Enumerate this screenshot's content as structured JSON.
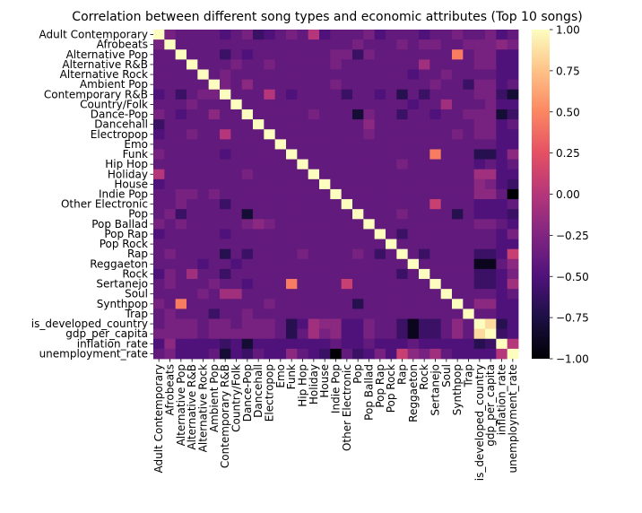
{
  "chart_data": {
    "type": "heatmap",
    "title": "Correlation between different song types and economic attributes (Top 10 songs)",
    "labels": [
      "Adult Contemporary",
      "Afrobeats",
      "Alternative Pop",
      "Alternative R&B",
      "Alternative Rock",
      "Ambient Pop",
      "Contemporary R&B",
      "Country/Folk",
      "Dance-Pop",
      "Dancehall",
      "Electropop",
      "Emo",
      "Funk",
      "Hip Hop",
      "Holiday",
      "House",
      "Indie Pop",
      "Other Electronic",
      "Pop",
      "Pop Ballad",
      "Pop Rap",
      "Pop Rock",
      "Rap",
      "Reggaeton",
      "Rock",
      "Sertanejo",
      "Soul",
      "Synthpop",
      "Trap",
      "is_developed_country",
      "gdp_per_capita",
      "inflation_rate",
      "unemployment_rate"
    ],
    "colorbar": {
      "min": -1.0,
      "max": 1.0,
      "ticks": [
        "1.00",
        "0.75",
        "0.50",
        "0.25",
        "0.00",
        "−0.25",
        "−0.50",
        "−0.75",
        "−1.00"
      ],
      "tick_values": [
        1,
        0.75,
        0.5,
        0.25,
        0,
        -0.25,
        -0.5,
        -0.75,
        -1
      ]
    },
    "colormap": "magma",
    "values": [
      [
        1.0,
        -0.3,
        -0.4,
        -0.4,
        -0.4,
        -0.4,
        -0.5,
        -0.4,
        -0.3,
        -0.6,
        -0.5,
        -0.4,
        -0.3,
        -0.4,
        0.0,
        -0.5,
        -0.4,
        -0.4,
        -0.4,
        -0.3,
        -0.5,
        -0.4,
        -0.4,
        -0.4,
        -0.5,
        -0.4,
        -0.4,
        -0.3,
        -0.4,
        -0.4,
        -0.3,
        -0.5,
        -0.4
      ],
      [
        -0.3,
        1.0,
        -0.4,
        -0.4,
        -0.4,
        -0.4,
        -0.4,
        -0.4,
        -0.4,
        -0.4,
        -0.4,
        -0.4,
        -0.4,
        -0.4,
        -0.4,
        -0.4,
        -0.4,
        -0.4,
        -0.3,
        -0.4,
        -0.4,
        -0.4,
        -0.3,
        -0.4,
        -0.3,
        -0.3,
        -0.4,
        -0.4,
        -0.3,
        -0.3,
        -0.3,
        -0.2,
        -0.3
      ],
      [
        -0.4,
        -0.4,
        1.0,
        -0.4,
        -0.4,
        -0.4,
        -0.6,
        -0.4,
        -0.5,
        -0.4,
        -0.4,
        -0.4,
        -0.4,
        -0.4,
        -0.4,
        -0.4,
        -0.3,
        -0.3,
        -0.6,
        -0.3,
        -0.4,
        -0.4,
        -0.4,
        -0.4,
        -0.4,
        -0.4,
        -0.4,
        0.45,
        -0.4,
        -0.3,
        -0.3,
        -0.5,
        -0.5
      ],
      [
        -0.4,
        -0.4,
        -0.4,
        1.0,
        -0.4,
        -0.4,
        -0.4,
        -0.3,
        -0.4,
        -0.4,
        -0.3,
        -0.4,
        -0.4,
        -0.4,
        -0.4,
        -0.4,
        -0.3,
        -0.4,
        -0.4,
        -0.4,
        -0.4,
        -0.4,
        -0.4,
        -0.4,
        -0.1,
        -0.4,
        -0.4,
        -0.4,
        -0.4,
        -0.3,
        -0.3,
        -0.5,
        -0.5
      ],
      [
        -0.4,
        -0.4,
        -0.4,
        -0.4,
        1.0,
        -0.4,
        -0.3,
        -0.4,
        -0.4,
        -0.4,
        -0.4,
        -0.4,
        -0.4,
        -0.4,
        -0.4,
        -0.4,
        -0.4,
        -0.4,
        -0.4,
        -0.4,
        -0.4,
        -0.4,
        -0.4,
        -0.5,
        -0.4,
        -0.4,
        -0.3,
        -0.4,
        -0.4,
        -0.4,
        -0.4,
        -0.5,
        -0.5
      ],
      [
        -0.4,
        -0.4,
        -0.4,
        -0.4,
        -0.4,
        1.0,
        -0.3,
        -0.4,
        -0.2,
        -0.4,
        -0.4,
        -0.4,
        -0.4,
        -0.4,
        -0.4,
        -0.4,
        -0.3,
        -0.4,
        -0.4,
        -0.4,
        -0.4,
        -0.4,
        -0.4,
        -0.4,
        -0.4,
        -0.3,
        -0.4,
        -0.4,
        -0.6,
        -0.3,
        -0.3,
        -0.5,
        -0.4
      ],
      [
        -0.5,
        -0.4,
        -0.6,
        -0.4,
        -0.3,
        -0.3,
        1.0,
        -0.4,
        -0.4,
        -0.4,
        -0.0,
        -0.4,
        -0.5,
        -0.4,
        -0.4,
        -0.4,
        -0.4,
        -0.6,
        -0.4,
        -0.4,
        -0.5,
        -0.4,
        -0.7,
        -0.4,
        -0.6,
        -0.4,
        -0.4,
        -0.4,
        -0.4,
        -0.3,
        -0.3,
        -0.6,
        -0.8
      ],
      [
        -0.4,
        -0.4,
        -0.4,
        -0.3,
        -0.4,
        -0.4,
        -0.4,
        1.0,
        -0.4,
        -0.4,
        -0.4,
        -0.4,
        -0.4,
        -0.4,
        -0.4,
        -0.4,
        -0.4,
        -0.4,
        -0.4,
        -0.4,
        -0.4,
        -0.4,
        -0.4,
        -0.5,
        -0.4,
        -0.4,
        -0.1,
        -0.4,
        -0.4,
        -0.4,
        -0.3,
        -0.5,
        -0.5
      ],
      [
        -0.3,
        -0.4,
        -0.5,
        -0.4,
        -0.4,
        -0.2,
        -0.4,
        -0.4,
        1.0,
        -0.4,
        -0.4,
        -0.4,
        -0.4,
        -0.4,
        -0.3,
        -0.4,
        -0.4,
        -0.4,
        -0.8,
        -0.3,
        -0.4,
        -0.4,
        -0.6,
        -0.4,
        -0.4,
        -0.5,
        -0.4,
        -0.4,
        -0.3,
        -0.3,
        -0.3,
        -0.8,
        -0.6
      ],
      [
        -0.6,
        -0.4,
        -0.4,
        -0.4,
        -0.4,
        -0.4,
        -0.4,
        -0.4,
        -0.4,
        1.0,
        -0.4,
        -0.4,
        -0.4,
        -0.4,
        -0.4,
        -0.4,
        -0.4,
        -0.4,
        -0.4,
        -0.2,
        -0.4,
        -0.4,
        -0.4,
        -0.4,
        -0.4,
        -0.4,
        -0.4,
        -0.4,
        -0.4,
        -0.3,
        -0.3,
        -0.5,
        -0.4
      ],
      [
        -0.5,
        -0.4,
        -0.4,
        -0.3,
        -0.4,
        -0.4,
        -0.0,
        -0.4,
        -0.4,
        -0.4,
        1.0,
        -0.4,
        -0.4,
        -0.4,
        -0.4,
        -0.4,
        -0.4,
        -0.4,
        -0.4,
        -0.3,
        -0.4,
        -0.4,
        -0.4,
        -0.4,
        -0.4,
        -0.4,
        -0.4,
        -0.3,
        -0.4,
        -0.3,
        -0.3,
        -0.5,
        -0.5
      ],
      [
        -0.4,
        -0.4,
        -0.4,
        -0.4,
        -0.4,
        -0.4,
        -0.4,
        -0.4,
        -0.4,
        -0.4,
        -0.4,
        1.0,
        -0.4,
        -0.4,
        -0.4,
        -0.4,
        -0.4,
        -0.4,
        -0.4,
        -0.4,
        -0.4,
        -0.4,
        -0.4,
        -0.4,
        -0.4,
        -0.4,
        -0.4,
        -0.4,
        -0.4,
        -0.4,
        -0.4,
        -0.5,
        -0.5
      ],
      [
        -0.3,
        -0.4,
        -0.4,
        -0.4,
        -0.4,
        -0.4,
        -0.5,
        -0.4,
        -0.4,
        -0.4,
        -0.4,
        -0.4,
        1.0,
        -0.4,
        -0.4,
        -0.4,
        -0.4,
        -0.4,
        -0.4,
        -0.4,
        -0.4,
        -0.4,
        -0.4,
        -0.4,
        -0.4,
        0.45,
        -0.4,
        -0.4,
        -0.4,
        -0.7,
        -0.7,
        -0.5,
        -0.2
      ],
      [
        -0.4,
        -0.4,
        -0.4,
        -0.4,
        -0.4,
        -0.4,
        -0.4,
        -0.4,
        -0.4,
        -0.4,
        -0.4,
        -0.4,
        -0.4,
        1.0,
        -0.4,
        -0.4,
        -0.4,
        -0.4,
        -0.4,
        -0.4,
        -0.4,
        -0.4,
        -0.3,
        -0.4,
        -0.4,
        -0.4,
        -0.4,
        -0.4,
        -0.4,
        -0.5,
        -0.4,
        -0.5,
        -0.4
      ],
      [
        0.0,
        -0.4,
        -0.4,
        -0.4,
        -0.4,
        -0.4,
        -0.4,
        -0.4,
        -0.3,
        -0.4,
        -0.4,
        -0.4,
        -0.4,
        -0.4,
        1.0,
        -0.4,
        -0.4,
        -0.4,
        -0.4,
        -0.4,
        -0.4,
        -0.4,
        -0.4,
        -0.4,
        -0.4,
        -0.4,
        -0.4,
        -0.4,
        -0.4,
        -0.1,
        -0.1,
        -0.5,
        -0.5
      ],
      [
        -0.5,
        -0.4,
        -0.4,
        -0.4,
        -0.4,
        -0.4,
        -0.4,
        -0.4,
        -0.4,
        -0.4,
        -0.4,
        -0.4,
        -0.4,
        -0.4,
        -0.4,
        1.0,
        -0.4,
        -0.4,
        -0.4,
        -0.4,
        -0.4,
        -0.4,
        -0.4,
        -0.4,
        -0.4,
        -0.4,
        -0.4,
        -0.4,
        -0.4,
        -0.2,
        -0.3,
        -0.5,
        -0.6
      ],
      [
        -0.4,
        -0.4,
        -0.3,
        -0.3,
        -0.4,
        -0.3,
        -0.4,
        -0.4,
        -0.4,
        -0.4,
        -0.4,
        -0.4,
        -0.4,
        -0.4,
        -0.4,
        -0.4,
        1.0,
        -0.4,
        -0.4,
        -0.4,
        -0.4,
        -0.4,
        -0.4,
        -0.4,
        -0.4,
        -0.4,
        -0.4,
        -0.4,
        -0.4,
        -0.2,
        -0.2,
        -0.4,
        -1.0
      ],
      [
        -0.4,
        -0.4,
        -0.3,
        -0.4,
        -0.4,
        -0.4,
        -0.6,
        -0.4,
        -0.4,
        -0.4,
        -0.4,
        -0.4,
        -0.4,
        -0.4,
        -0.4,
        -0.4,
        -0.4,
        1.0,
        -0.4,
        -0.4,
        -0.4,
        -0.4,
        -0.4,
        -0.4,
        -0.4,
        0.1,
        -0.4,
        -0.4,
        -0.4,
        -0.5,
        -0.5,
        -0.5,
        -0.4
      ],
      [
        -0.4,
        -0.3,
        -0.6,
        -0.4,
        -0.4,
        -0.4,
        -0.4,
        -0.4,
        -0.8,
        -0.4,
        -0.4,
        -0.4,
        -0.4,
        -0.4,
        -0.4,
        -0.4,
        -0.4,
        -0.4,
        1.0,
        -0.4,
        -0.4,
        -0.4,
        -0.3,
        -0.4,
        -0.4,
        -0.4,
        -0.4,
        -0.7,
        -0.4,
        -0.5,
        -0.5,
        -0.5,
        -0.6
      ],
      [
        -0.3,
        -0.4,
        -0.3,
        -0.4,
        -0.4,
        -0.4,
        -0.4,
        -0.4,
        -0.3,
        -0.2,
        -0.3,
        -0.4,
        -0.4,
        -0.4,
        -0.4,
        -0.4,
        -0.4,
        -0.4,
        -0.4,
        1.0,
        -0.4,
        -0.4,
        -0.4,
        -0.4,
        -0.4,
        -0.4,
        -0.4,
        -0.4,
        -0.4,
        -0.3,
        -0.3,
        -0.4,
        -0.5
      ],
      [
        -0.5,
        -0.4,
        -0.4,
        -0.4,
        -0.4,
        -0.4,
        -0.5,
        -0.4,
        -0.4,
        -0.4,
        -0.4,
        -0.4,
        -0.4,
        -0.4,
        -0.4,
        -0.4,
        -0.4,
        -0.4,
        -0.4,
        -0.4,
        1.0,
        -0.4,
        -0.6,
        -0.4,
        -0.4,
        -0.4,
        -0.4,
        -0.4,
        -0.4,
        -0.4,
        -0.4,
        -0.5,
        -0.3
      ],
      [
        -0.4,
        -0.4,
        -0.4,
        -0.4,
        -0.4,
        -0.4,
        -0.4,
        -0.4,
        -0.4,
        -0.4,
        -0.4,
        -0.4,
        -0.4,
        -0.4,
        -0.4,
        -0.4,
        -0.4,
        -0.4,
        -0.4,
        -0.4,
        -0.4,
        1.0,
        -0.4,
        -0.4,
        -0.4,
        -0.4,
        -0.4,
        -0.4,
        -0.4,
        -0.4,
        -0.4,
        -0.5,
        -0.5
      ],
      [
        -0.4,
        -0.3,
        -0.4,
        -0.4,
        -0.4,
        -0.4,
        -0.7,
        -0.4,
        -0.6,
        -0.4,
        -0.4,
        -0.4,
        -0.4,
        -0.3,
        -0.4,
        -0.4,
        -0.4,
        -0.4,
        -0.3,
        -0.4,
        -0.6,
        -0.4,
        1.0,
        -0.4,
        -0.6,
        -0.4,
        -0.4,
        -0.4,
        -0.4,
        -0.6,
        -0.6,
        -0.5,
        0.1
      ],
      [
        -0.4,
        -0.4,
        -0.4,
        -0.4,
        -0.5,
        -0.4,
        -0.4,
        -0.5,
        -0.4,
        -0.4,
        -0.4,
        -0.4,
        -0.4,
        -0.4,
        -0.4,
        -0.4,
        -0.4,
        -0.4,
        -0.4,
        -0.4,
        -0.4,
        -0.4,
        -0.4,
        1.0,
        -0.4,
        -0.4,
        -0.4,
        -0.4,
        -0.4,
        -0.9,
        -0.9,
        -0.4,
        -0.2
      ],
      [
        -0.5,
        -0.3,
        -0.4,
        -0.1,
        -0.4,
        -0.4,
        -0.6,
        -0.4,
        -0.4,
        -0.4,
        -0.4,
        -0.4,
        -0.4,
        -0.4,
        -0.4,
        -0.4,
        -0.4,
        -0.4,
        -0.4,
        -0.4,
        -0.4,
        -0.4,
        -0.6,
        -0.4,
        1.0,
        -0.4,
        -0.4,
        -0.4,
        -0.4,
        -0.6,
        -0.6,
        -0.5,
        -0.3
      ],
      [
        -0.4,
        -0.3,
        -0.4,
        -0.4,
        -0.4,
        -0.3,
        -0.4,
        -0.4,
        -0.5,
        -0.4,
        -0.4,
        -0.4,
        0.45,
        -0.4,
        -0.4,
        -0.4,
        -0.4,
        0.1,
        -0.4,
        -0.4,
        -0.4,
        -0.4,
        -0.4,
        -0.4,
        -0.4,
        1.0,
        -0.4,
        -0.4,
        -0.4,
        -0.6,
        -0.6,
        -0.5,
        -0.1
      ],
      [
        -0.4,
        -0.4,
        -0.4,
        -0.4,
        -0.3,
        -0.4,
        -0.1,
        -0.1,
        -0.4,
        -0.4,
        -0.4,
        -0.4,
        -0.4,
        -0.4,
        -0.4,
        -0.4,
        -0.4,
        -0.4,
        -0.4,
        -0.4,
        -0.4,
        -0.4,
        -0.4,
        -0.4,
        -0.4,
        -0.4,
        1.0,
        -0.4,
        -0.4,
        -0.4,
        -0.4,
        -0.5,
        -0.4
      ],
      [
        -0.3,
        -0.4,
        0.45,
        -0.4,
        -0.4,
        -0.4,
        -0.4,
        -0.4,
        -0.4,
        -0.4,
        -0.3,
        -0.4,
        -0.4,
        -0.4,
        -0.4,
        -0.4,
        -0.4,
        -0.4,
        -0.7,
        -0.4,
        -0.4,
        -0.4,
        -0.4,
        -0.4,
        -0.4,
        -0.4,
        -0.4,
        1.0,
        -0.4,
        -0.2,
        -0.2,
        -0.5,
        -0.5
      ],
      [
        -0.4,
        -0.3,
        -0.4,
        -0.4,
        -0.4,
        -0.6,
        -0.4,
        -0.4,
        -0.3,
        -0.4,
        -0.4,
        -0.4,
        -0.4,
        -0.4,
        -0.4,
        -0.4,
        -0.4,
        -0.4,
        -0.4,
        -0.4,
        -0.4,
        -0.4,
        -0.4,
        -0.4,
        -0.4,
        -0.4,
        -0.4,
        -0.4,
        1.0,
        -0.4,
        -0.4,
        -0.5,
        -0.5
      ],
      [
        -0.4,
        -0.3,
        -0.3,
        -0.3,
        -0.4,
        -0.3,
        -0.3,
        -0.4,
        -0.3,
        -0.3,
        -0.3,
        -0.4,
        -0.7,
        -0.5,
        -0.1,
        -0.2,
        -0.2,
        -0.5,
        -0.5,
        -0.3,
        -0.4,
        -0.4,
        -0.6,
        -0.9,
        -0.6,
        -0.6,
        -0.4,
        -0.2,
        -0.4,
        1.0,
        0.85,
        -0.7,
        -0.5
      ],
      [
        -0.3,
        -0.3,
        -0.3,
        -0.3,
        -0.4,
        -0.3,
        -0.3,
        -0.3,
        -0.3,
        -0.3,
        -0.3,
        -0.4,
        -0.7,
        -0.4,
        -0.1,
        -0.3,
        -0.2,
        -0.5,
        -0.5,
        -0.3,
        -0.4,
        -0.4,
        -0.6,
        -0.9,
        -0.6,
        -0.6,
        -0.4,
        -0.2,
        -0.4,
        0.85,
        1.0,
        -0.6,
        -0.5
      ],
      [
        -0.5,
        -0.2,
        -0.5,
        -0.5,
        -0.5,
        -0.5,
        -0.6,
        -0.5,
        -0.8,
        -0.5,
        -0.5,
        -0.5,
        -0.5,
        -0.5,
        -0.5,
        -0.5,
        -0.4,
        -0.5,
        -0.5,
        -0.4,
        -0.5,
        -0.5,
        -0.5,
        -0.4,
        -0.5,
        -0.5,
        -0.5,
        -0.5,
        -0.5,
        -0.7,
        -0.6,
        1.0,
        0.0
      ],
      [
        -0.4,
        -0.3,
        -0.5,
        -0.5,
        -0.5,
        -0.4,
        -0.8,
        -0.5,
        -0.6,
        -0.4,
        -0.5,
        -0.5,
        -0.2,
        -0.4,
        -0.5,
        -0.6,
        -1.0,
        -0.4,
        -0.6,
        -0.5,
        -0.3,
        -0.5,
        0.1,
        -0.2,
        -0.3,
        -0.1,
        -0.4,
        -0.5,
        -0.5,
        -0.5,
        -0.5,
        0.0,
        1.0
      ]
    ]
  }
}
